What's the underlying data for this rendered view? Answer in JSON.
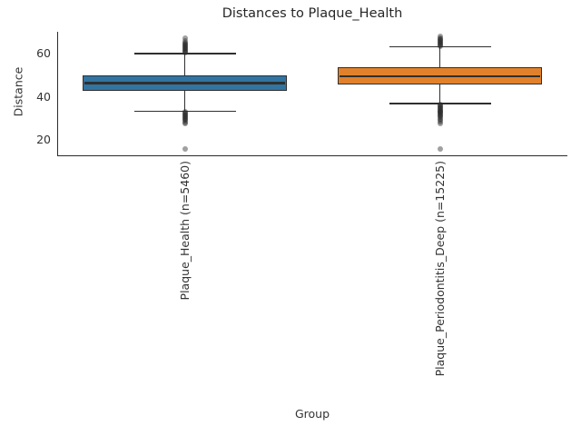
{
  "chart_data": {
    "type": "box",
    "title": "Distances to Plaque_Health",
    "xlabel": "Group",
    "ylabel": "Distance",
    "ylim": [
      13,
      70.2
    ],
    "yticks": [
      20,
      40,
      60
    ],
    "grid": false,
    "legend_position": "none",
    "categories": [
      "Plaque_Health (n=5460)",
      "Plaque_Periodontitis_Deep (n=15225)"
    ],
    "series": [
      {
        "name": "Plaque_Health (n=5460)",
        "color": "#3274A1",
        "q1": 42.6,
        "median": 46.4,
        "q3": 50.1,
        "whisker_low": 33.4,
        "whisker_high": 60.1,
        "outliers_high": [
          67.3,
          65.8,
          65.2,
          64.7,
          64.2,
          63.8,
          63.4,
          63.0,
          62.6,
          62.2,
          61.8,
          61.4,
          61.0,
          60.6
        ],
        "outliers_low": [
          33.0,
          32.6,
          32.2,
          31.8,
          31.4,
          31.0,
          30.6,
          30.2,
          29.8,
          29.3,
          28.8,
          28.2,
          27.6,
          15.8
        ]
      },
      {
        "name": "Plaque_Periodontitis_Deep (n=15225)",
        "color": "#E1812C",
        "q1": 45.6,
        "median": 49.4,
        "q3": 53.6,
        "whisker_low": 36.9,
        "whisker_high": 63.3,
        "outliers_high": [
          68.0,
          67.4,
          66.9,
          66.4,
          66.0,
          65.6,
          65.2,
          64.8,
          64.4,
          64.0,
          63.6
        ],
        "outliers_low": [
          36.5,
          36.1,
          35.7,
          35.3,
          34.9,
          34.5,
          34.1,
          33.7,
          33.3,
          32.9,
          32.5,
          32.1,
          31.7,
          31.3,
          30.9,
          30.4,
          29.9,
          29.3,
          28.6,
          27.8,
          15.8
        ]
      }
    ],
    "style": {
      "box_edge_color": "#2f2f2f",
      "median_color": "#2f2f2f",
      "whisker_color": "#2f2f2f",
      "spine_color": "#2b2b2b",
      "flier_color": "rgba(45,45,45,0.45)"
    }
  }
}
